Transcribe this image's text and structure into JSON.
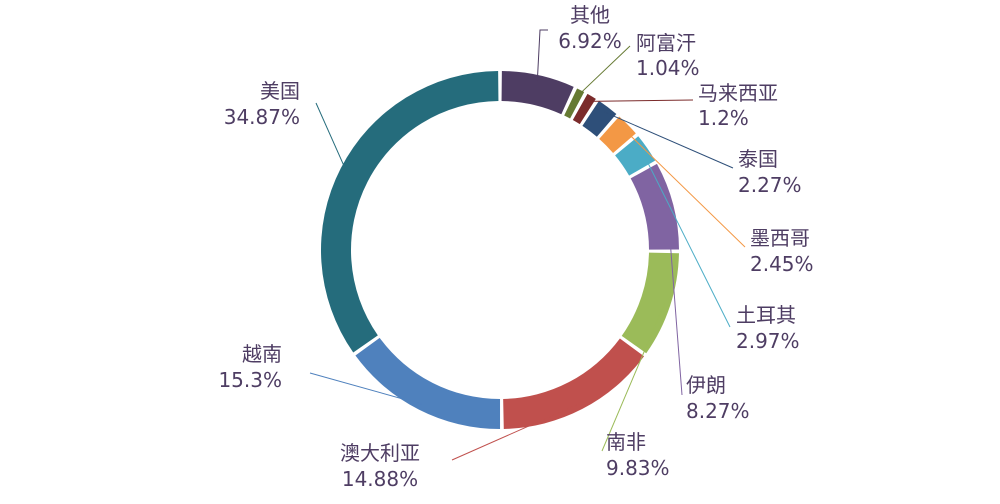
{
  "chart_data": {
    "type": "pie",
    "variant": "donut",
    "title": "",
    "categories": [
      "其他",
      "阿富汗",
      "马来西亚",
      "泰国",
      "墨西哥",
      "土耳其",
      "伊朗",
      "南非",
      "澳大利亚",
      "越南",
      "美国"
    ],
    "values": [
      6.92,
      1.04,
      1.2,
      2.27,
      2.45,
      2.97,
      8.27,
      9.83,
      14.88,
      15.3,
      34.87
    ],
    "value_labels": [
      "6.92%",
      "1.04%",
      "1.2%",
      "2.27%",
      "2.45%",
      "2.97%",
      "8.27%",
      "9.83%",
      "14.88%",
      "15.3%",
      "34.87%"
    ],
    "colors": [
      "#4e3d63",
      "#667a33",
      "#7b2b2b",
      "#2e4f79",
      "#f39845",
      "#4bacc6",
      "#8064a2",
      "#9bbb59",
      "#c0504d",
      "#4f81bd",
      "#256c7c"
    ],
    "label_color": "#4e3d63",
    "legend": "none"
  }
}
